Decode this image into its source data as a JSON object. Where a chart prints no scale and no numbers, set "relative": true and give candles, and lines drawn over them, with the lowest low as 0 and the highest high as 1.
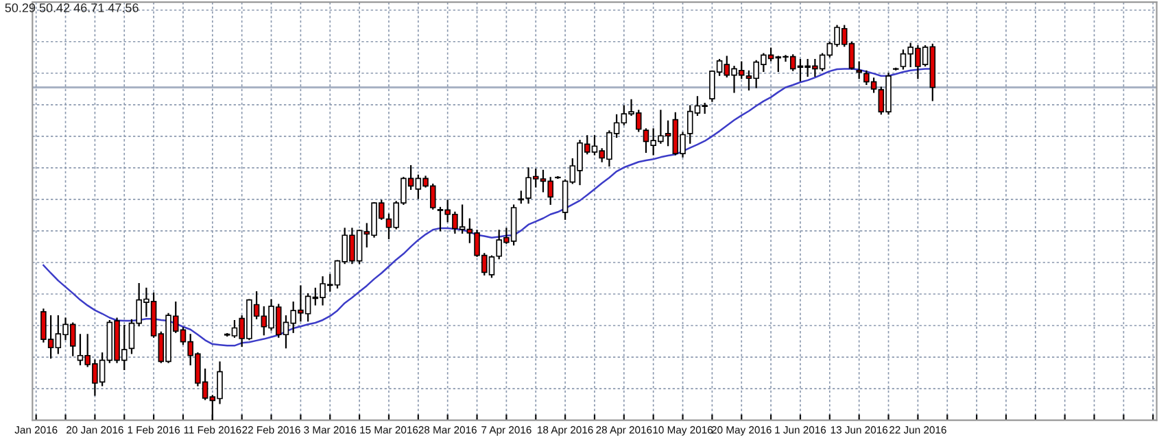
{
  "chart_data": {
    "type": "candlestick",
    "relative": true,
    "grid": true,
    "annotations": [
      "50.29 50.42 46.71 47.56"
    ],
    "categories": [
      "Jan 2016",
      null,
      null,
      null,
      null,
      null,
      null,
      null,
      "20 Jan 2016",
      null,
      null,
      null,
      null,
      null,
      null,
      null,
      "1 Feb 2016",
      null,
      null,
      null,
      null,
      null,
      null,
      null,
      "11 Feb 2016",
      null,
      null,
      null,
      null,
      null,
      null,
      null,
      "22 Feb 2016",
      null,
      null,
      null,
      null,
      null,
      null,
      null,
      "3 Mar 2016",
      null,
      null,
      null,
      null,
      null,
      null,
      null,
      "15 Mar 2016",
      null,
      null,
      null,
      null,
      null,
      null,
      null,
      "28 Mar 2016",
      null,
      null,
      null,
      null,
      null,
      null,
      null,
      "7 Apr 2016",
      null,
      null,
      null,
      null,
      null,
      null,
      null,
      "18 Apr 2016",
      null,
      null,
      null,
      null,
      null,
      null,
      null,
      "28 Apr 2016",
      null,
      null,
      null,
      null,
      null,
      null,
      null,
      "10 May 2016",
      null,
      null,
      null,
      null,
      null,
      null,
      null,
      "20 May 2016",
      null,
      null,
      null,
      null,
      null,
      null,
      null,
      "1 Jun 2016",
      null,
      null,
      null,
      null,
      null,
      null,
      null,
      "13 Jun 2016",
      null,
      null,
      null,
      null,
      null,
      null,
      null,
      "22 Jun 2016",
      null,
      null,
      null,
      null,
      null,
      null,
      null,
      null,
      null,
      null,
      null,
      null,
      null,
      null,
      null,
      null,
      null,
      null,
      null,
      null,
      null,
      null,
      null,
      null,
      null,
      null,
      null,
      null,
      null,
      null,
      null,
      null
    ],
    "ohlc": [
      null,
      [
        0.275,
        0.281,
        0.199,
        0.205
      ],
      [
        0.205,
        0.264,
        0.158,
        0.184
      ],
      [
        0.184,
        0.264,
        0.17,
        0.219
      ],
      [
        0.217,
        0.258,
        0.205,
        0.243
      ],
      [
        0.243,
        0.246,
        0.164,
        0.188
      ],
      [
        0.152,
        0.217,
        0.141,
        0.164
      ],
      [
        0.164,
        0.217,
        0.137,
        0.141
      ],
      [
        0.143,
        0.152,
        0.064,
        0.094
      ],
      [
        0.097,
        0.17,
        0.088,
        0.152
      ],
      [
        0.152,
        0.252,
        0.147,
        0.248
      ],
      [
        0.252,
        0.258,
        0.147,
        0.152
      ],
      [
        0.152,
        0.24,
        0.129,
        0.179
      ],
      [
        0.182,
        0.254,
        0.17,
        0.246
      ],
      [
        0.246,
        0.346,
        0.24,
        0.305
      ],
      [
        0.299,
        0.334,
        0.264,
        0.307
      ],
      [
        0.301,
        0.322,
        0.211,
        0.214
      ],
      [
        0.219,
        0.223,
        0.147,
        0.149
      ],
      [
        0.149,
        0.27,
        0.147,
        0.266
      ],
      [
        0.264,
        0.299,
        0.223,
        0.226
      ],
      [
        0.229,
        0.234,
        0.193,
        0.199
      ],
      [
        0.199,
        0.217,
        0.141,
        0.164
      ],
      [
        0.168,
        0.17,
        0.088,
        0.094
      ],
      [
        0.097,
        0.129,
        0.053,
        0.056
      ],
      [
        0.059,
        0.062,
        0,
        0.05
      ],
      [
        0.055,
        0.147,
        0.043,
        0.123
      ],
      [
        0.216,
        0.219,
        0.214,
        0.218
      ],
      [
        0.214,
        0.252,
        0.211,
        0.234
      ],
      [
        0.258,
        0.264,
        0.188,
        0.207
      ],
      [
        0.207,
        0.305,
        0.205,
        0.305
      ],
      [
        0.293,
        0.325,
        0.258,
        0.264
      ],
      [
        0.264,
        0.287,
        0.217,
        0.237
      ],
      [
        0.234,
        0.305,
        0.229,
        0.289
      ],
      [
        0.287,
        0.293,
        0.211,
        0.217
      ],
      [
        0.217,
        0.264,
        0.184,
        0.248
      ],
      [
        0.246,
        0.299,
        0.223,
        0.278
      ],
      [
        0.279,
        0.34,
        0.252,
        0.272
      ],
      [
        0.27,
        0.32,
        0.252,
        0.314
      ],
      [
        0.309,
        0.334,
        0.293,
        0.312
      ],
      [
        0.311,
        0.363,
        0.293,
        0.346
      ],
      [
        0.342,
        0.369,
        0.328,
        0.344
      ],
      [
        0.343,
        0.404,
        0.336,
        0.404
      ],
      [
        0.402,
        0.486,
        0.398,
        0.469
      ],
      [
        0.469,
        0.486,
        0.398,
        0.404
      ],
      [
        0.404,
        0.481,
        0.398,
        0.481
      ],
      [
        0.478,
        0.498,
        0.44,
        0.472
      ],
      [
        0.469,
        0.551,
        0.465,
        0.551
      ],
      [
        0.551,
        0.557,
        0.51,
        0.512
      ],
      [
        0.51,
        0.522,
        0.461,
        0.489
      ],
      [
        0.489,
        0.554,
        0.486,
        0.551
      ],
      [
        0.551,
        0.615,
        0.548,
        0.613
      ],
      [
        0.613,
        0.645,
        0.586,
        0.594
      ],
      [
        0.586,
        0.621,
        0.563,
        0.613
      ],
      [
        0.613,
        0.618,
        0.592,
        0.594
      ],
      [
        0.594,
        0.598,
        0.536,
        0.539
      ],
      [
        0.532,
        0.539,
        0.481,
        0.534
      ],
      [
        0.533,
        0.557,
        0.504,
        0.522
      ],
      [
        0.522,
        0.527,
        0.475,
        0.486
      ],
      [
        0.484,
        0.545,
        0.475,
        0.49
      ],
      [
        0.484,
        0.51,
        0.451,
        0.475
      ],
      [
        0.475,
        0.481,
        0.416,
        0.418
      ],
      [
        0.418,
        0.422,
        0.369,
        0.375
      ],
      [
        0.369,
        0.416,
        0.363,
        0.414
      ],
      [
        0.416,
        0.481,
        0.41,
        0.457
      ],
      [
        0.463,
        0.486,
        0.449,
        0.451
      ],
      [
        0.454,
        0.545,
        0.445,
        0.539
      ],
      [
        0.559,
        0.58,
        0.551,
        0.561
      ],
      [
        0.563,
        0.639,
        0.551,
        0.615
      ],
      [
        0.618,
        0.636,
        0.592,
        0.612
      ],
      [
        0.612,
        0.633,
        0.58,
        0.606
      ],
      [
        0.606,
        0.615,
        0.548,
        0.566
      ],
      [
        0.615,
        0.617,
        0.614,
        0.616
      ],
      [
        0.527,
        0.609,
        0.51,
        0.606
      ],
      [
        0.604,
        0.662,
        0.601,
        0.645
      ],
      [
        0.633,
        0.709,
        0.598,
        0.703
      ],
      [
        0.7,
        0.721,
        0.676,
        0.68
      ],
      [
        0.68,
        0.721,
        0.674,
        0.695
      ],
      [
        0.683,
        0.688,
        0.656,
        0.665
      ],
      [
        0.662,
        0.733,
        0.645,
        0.729
      ],
      [
        0.727,
        0.774,
        0.718,
        0.754
      ],
      [
        0.754,
        0.797,
        0.75,
        0.777
      ],
      [
        0.777,
        0.812,
        0.774,
        0.782
      ],
      [
        0.779,
        0.785,
        0.733,
        0.738
      ],
      [
        0.735,
        0.738,
        0.68,
        0.707
      ],
      [
        0.697,
        0.738,
        0.674,
        0.709
      ],
      [
        0.707,
        0.785,
        0.703,
        0.721
      ],
      [
        0.727,
        0.758,
        0.697,
        0.721
      ],
      [
        0.762,
        0.779,
        0.674,
        0.676
      ],
      [
        0.676,
        0.729,
        0.668,
        0.724
      ],
      [
        0.727,
        0.797,
        0.703,
        0.783
      ],
      [
        0.779,
        0.82,
        0.774,
        0.797
      ],
      [
        0.796,
        0.803,
        0.779,
        0.798
      ],
      [
        0.815,
        0.885,
        0.809,
        0.885
      ],
      [
        0.883,
        0.914,
        0.875,
        0.911
      ],
      [
        0.902,
        0.922,
        0.871,
        0.875
      ],
      [
        0.875,
        0.897,
        0.832,
        0.891
      ],
      [
        0.887,
        0.908,
        0.867,
        0.875
      ],
      [
        0.873,
        0.885,
        0.838,
        0.867
      ],
      [
        0.867,
        0.911,
        0.844,
        0.908
      ],
      [
        0.902,
        0.929,
        0.885,
        0.926
      ],
      [
        0.926,
        0.943,
        0.912,
        0.917
      ],
      [
        0.919,
        0.922,
        0.885,
        0.921
      ],
      [
        0.921,
        0.924,
        0.911,
        0.922
      ],
      [
        0.922,
        0.926,
        0.887,
        0.891
      ],
      [
        0.895,
        0.914,
        0.861,
        0.898
      ],
      [
        0.895,
        0.914,
        0.873,
        0.898
      ],
      [
        0.898,
        0.914,
        0.873,
        0.891
      ],
      [
        0.891,
        0.929,
        0.887,
        0.926
      ],
      [
        0.926,
        0.958,
        0.922,
        0.955
      ],
      [
        0.953,
        1,
        0.949,
        0.996
      ],
      [
        0.993,
        1,
        0.949,
        0.953
      ],
      [
        0.955,
        0.958,
        0.891,
        0.893
      ],
      [
        0.887,
        0.908,
        0.867,
        0.883
      ],
      [
        0.879,
        0.885,
        0.852,
        0.858
      ],
      [
        0.858,
        0.867,
        0.832,
        0.84
      ],
      [
        0.838,
        0.844,
        0.777,
        0.782
      ],
      [
        0.782,
        0.879,
        0.777,
        0.873
      ],
      [
        0.89,
        0.892,
        0.889,
        0.891
      ],
      [
        0.897,
        0.938,
        0.891,
        0.929
      ],
      [
        0.929,
        0.955,
        0.897,
        0.946
      ],
      [
        0.943,
        0.949,
        0.867,
        0.897
      ],
      [
        0.902,
        0.949,
        0.899,
        0.946
      ],
      [
        0.947,
        0.953,
        0.811,
        0.844
      ],
      null,
      null,
      null,
      null,
      null,
      null,
      null,
      null,
      null,
      null,
      null,
      null,
      null,
      null,
      null,
      null,
      null,
      null,
      null,
      null,
      null,
      null,
      null,
      null,
      null,
      null,
      null,
      null,
      null,
      null
    ],
    "colors": [
      null,
      "#e00000",
      "#e00000",
      "#ffffff",
      "#ffffff",
      "#e00000",
      "#ffffff",
      "#e00000",
      "#e00000",
      "#ffffff",
      "#ffffff",
      "#e00000",
      "#ffffff",
      "#ffffff",
      "#ffffff",
      "#ffffff",
      "#e00000",
      "#e00000",
      "#ffffff",
      "#e00000",
      "#e00000",
      "#e00000",
      "#e00000",
      "#e00000",
      "#e00000",
      "#ffffff",
      "#ffffff",
      "#ffffff",
      "#e00000",
      "#ffffff",
      "#e00000",
      "#e00000",
      "#ffffff",
      "#e00000",
      "#ffffff",
      "#ffffff",
      "#e00000",
      "#ffffff",
      "#ffffff",
      "#ffffff",
      "#ffffff",
      "#ffffff",
      "#ffffff",
      "#e00000",
      "#ffffff",
      "#e00000",
      "#ffffff",
      "#e00000",
      "#e00000",
      "#ffffff",
      "#ffffff",
      "#e00000",
      "#ffffff",
      "#e00000",
      "#e00000",
      "#ffffff",
      "#e00000",
      "#e00000",
      "#ffffff",
      "#e00000",
      "#e00000",
      "#e00000",
      "#ffffff",
      "#ffffff",
      "#e00000",
      "#ffffff",
      "#ffffff",
      "#ffffff",
      "#e00000",
      "#e00000",
      "#e00000",
      "#ffffff",
      "#ffffff",
      "#ffffff",
      "#ffffff",
      "#e00000",
      "#ffffff",
      "#e00000",
      "#ffffff",
      "#ffffff",
      "#ffffff",
      "#ffffff",
      "#e00000",
      "#e00000",
      "#ffffff",
      "#ffffff",
      "#e00000",
      "#e00000",
      "#ffffff",
      "#ffffff",
      "#ffffff",
      "#ffffff",
      "#ffffff",
      "#ffffff",
      "#e00000",
      "#ffffff",
      "#e00000",
      "#e00000",
      "#ffffff",
      "#ffffff",
      "#e00000",
      "#ffffff",
      "#ffffff",
      "#e00000",
      "#ffffff",
      "#ffffff",
      "#e00000",
      "#ffffff",
      "#ffffff",
      "#ffffff",
      "#e00000",
      "#e00000",
      "#e00000",
      "#e00000",
      "#e00000",
      "#e00000",
      "#ffffff",
      "#ffffff",
      "#ffffff",
      "#ffffff",
      "#e00000",
      "#ffffff",
      "#e00000",
      null,
      null,
      null,
      null,
      null,
      null,
      null,
      null,
      null,
      null,
      null,
      null,
      null,
      null,
      null,
      null,
      null,
      null,
      null,
      null,
      null,
      null,
      null,
      null,
      null,
      null,
      null,
      null,
      null,
      null
    ],
    "series": [
      {
        "type": "line",
        "color": "#3c3cc8",
        "values": [
          null,
          0.393,
          0.373,
          0.354,
          0.338,
          0.322,
          0.305,
          0.291,
          0.279,
          0.27,
          0.26,
          0.253,
          0.252,
          0.252,
          0.254,
          0.257,
          0.257,
          0.254,
          0.252,
          0.245,
          0.237,
          0.23,
          0.217,
          0.203,
          0.193,
          0.191,
          0.189,
          0.189,
          0.196,
          0.198,
          0.202,
          0.206,
          0.211,
          0.216,
          0.225,
          0.233,
          0.238,
          0.243,
          0.247,
          0.254,
          0.264,
          0.278,
          0.297,
          0.311,
          0.326,
          0.341,
          0.358,
          0.373,
          0.39,
          0.407,
          0.422,
          0.44,
          0.457,
          0.471,
          0.483,
          0.487,
          0.487,
          0.485,
          0.483,
          0.477,
          0.47,
          0.467,
          0.463,
          0.465,
          0.468,
          0.469,
          0.481,
          0.496,
          0.504,
          0.512,
          0.522,
          0.528,
          0.537,
          0.547,
          0.557,
          0.571,
          0.586,
          0.601,
          0.615,
          0.631,
          0.641,
          0.648,
          0.655,
          0.659,
          0.662,
          0.667,
          0.671,
          0.674,
          0.682,
          0.691,
          0.699,
          0.708,
          0.72,
          0.733,
          0.747,
          0.761,
          0.773,
          0.784,
          0.797,
          0.809,
          0.819,
          0.832,
          0.844,
          0.85,
          0.857,
          0.862,
          0.869,
          0.877,
          0.885,
          0.89,
          0.891,
          0.891,
          0.889,
          0.884,
          0.879,
          0.873,
          0.873,
          0.878,
          0.883,
          0.887,
          0.889,
          0.891,
          0.891,
          null,
          null,
          null,
          null,
          null,
          null,
          null,
          null,
          null,
          null,
          null,
          null,
          null,
          null,
          null,
          null,
          null,
          null,
          null,
          null,
          null,
          null,
          null,
          null,
          null,
          null,
          null,
          null,
          null,
          null
        ]
      }
    ],
    "ref_lines": [
      {
        "axis": "y",
        "value": 0.844,
        "color": "#a8b2c4"
      }
    ]
  }
}
